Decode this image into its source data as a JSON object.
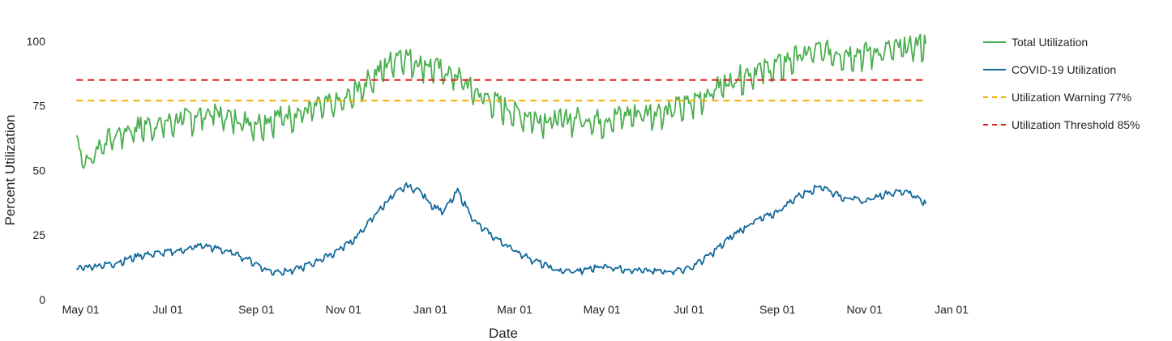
{
  "chart_data": {
    "type": "line",
    "xlabel": "Date",
    "ylabel": "Percent Utilization",
    "ylim": [
      0,
      104
    ],
    "xlim": [
      "2020-04-21",
      "2022-01-10"
    ],
    "y_ticks": [
      0,
      25,
      50,
      75,
      100
    ],
    "x_ticks": [
      {
        "date": "2020-05-01",
        "label": "May 01"
      },
      {
        "date": "2020-07-01",
        "label": "Jul 01"
      },
      {
        "date": "2020-09-01",
        "label": "Sep 01"
      },
      {
        "date": "2020-11-01",
        "label": "Nov 01"
      },
      {
        "date": "2021-01-01",
        "label": "Jan 01"
      },
      {
        "date": "2021-03-01",
        "label": "Mar 01"
      },
      {
        "date": "2021-05-01",
        "label": "May 01"
      },
      {
        "date": "2021-07-01",
        "label": "Jul 01"
      },
      {
        "date": "2021-09-01",
        "label": "Sep 01"
      },
      {
        "date": "2021-11-01",
        "label": "Nov 01"
      },
      {
        "date": "2022-01-01",
        "label": "Jan 01"
      }
    ],
    "grid": false,
    "legend_position": "right",
    "series": [
      {
        "name": "Total Utilization",
        "color": "#4caf50",
        "style": "solid",
        "x": [
          "2020-04-28",
          "2020-05-05",
          "2020-05-15",
          "2020-06-01",
          "2020-06-15",
          "2020-07-01",
          "2020-07-15",
          "2020-08-01",
          "2020-08-15",
          "2020-09-01",
          "2020-09-15",
          "2020-10-01",
          "2020-10-15",
          "2020-11-01",
          "2020-11-15",
          "2020-12-01",
          "2020-12-10",
          "2020-12-20",
          "2021-01-01",
          "2021-01-10",
          "2021-01-20",
          "2021-02-01",
          "2021-02-15",
          "2021-03-01",
          "2021-03-15",
          "2021-04-01",
          "2021-04-15",
          "2021-05-01",
          "2021-05-15",
          "2021-06-01",
          "2021-06-15",
          "2021-07-01",
          "2021-07-15",
          "2021-08-01",
          "2021-08-15",
          "2021-09-01",
          "2021-09-15",
          "2021-10-01",
          "2021-10-15",
          "2021-11-01",
          "2021-11-15",
          "2021-12-01",
          "2021-12-14"
        ],
        "values": [
          62,
          52,
          60,
          65,
          67,
          68,
          70,
          72,
          70,
          68,
          70,
          72,
          74,
          76,
          83,
          90,
          95,
          92,
          90,
          88,
          86,
          80,
          76,
          72,
          70,
          69,
          70,
          69,
          71,
          72,
          73,
          75,
          80,
          85,
          88,
          90,
          94,
          96,
          95,
          95,
          96,
          97,
          99
        ]
      },
      {
        "name": "COVID-19 Utilization",
        "color": "#11699b",
        "style": "solid",
        "x": [
          "2020-04-28",
          "2020-05-10",
          "2020-05-25",
          "2020-06-10",
          "2020-06-25",
          "2020-07-10",
          "2020-07-25",
          "2020-08-10",
          "2020-08-25",
          "2020-09-10",
          "2020-09-25",
          "2020-10-10",
          "2020-10-25",
          "2020-11-10",
          "2020-11-25",
          "2020-12-05",
          "2020-12-15",
          "2020-12-25",
          "2021-01-01",
          "2021-01-10",
          "2021-01-20",
          "2021-02-01",
          "2021-02-15",
          "2021-03-01",
          "2021-03-15",
          "2021-04-01",
          "2021-04-15",
          "2021-05-01",
          "2021-05-15",
          "2021-06-01",
          "2021-06-15",
          "2021-07-01",
          "2021-07-15",
          "2021-08-01",
          "2021-08-15",
          "2021-09-01",
          "2021-09-15",
          "2021-10-01",
          "2021-10-15",
          "2021-11-01",
          "2021-11-15",
          "2021-12-01",
          "2021-12-14"
        ],
        "values": [
          12,
          13,
          14,
          17,
          18,
          19,
          21,
          19,
          16,
          11,
          11,
          14,
          18,
          24,
          34,
          40,
          44,
          42,
          37,
          34,
          42,
          30,
          24,
          19,
          15,
          11,
          11,
          13,
          12,
          11,
          11,
          12,
          17,
          25,
          30,
          34,
          40,
          44,
          40,
          38,
          41,
          42,
          37
        ]
      },
      {
        "name": "Utilization Warning 77%",
        "color": "#f4b000",
        "style": "dashed",
        "x": [
          "2020-04-28",
          "2021-12-14"
        ],
        "values": [
          77,
          77
        ]
      },
      {
        "name": "Utilization Threshold 85%",
        "color": "#e0201e",
        "style": "dashed",
        "x": [
          "2020-04-28",
          "2021-12-14"
        ],
        "values": [
          85,
          85
        ]
      }
    ]
  }
}
